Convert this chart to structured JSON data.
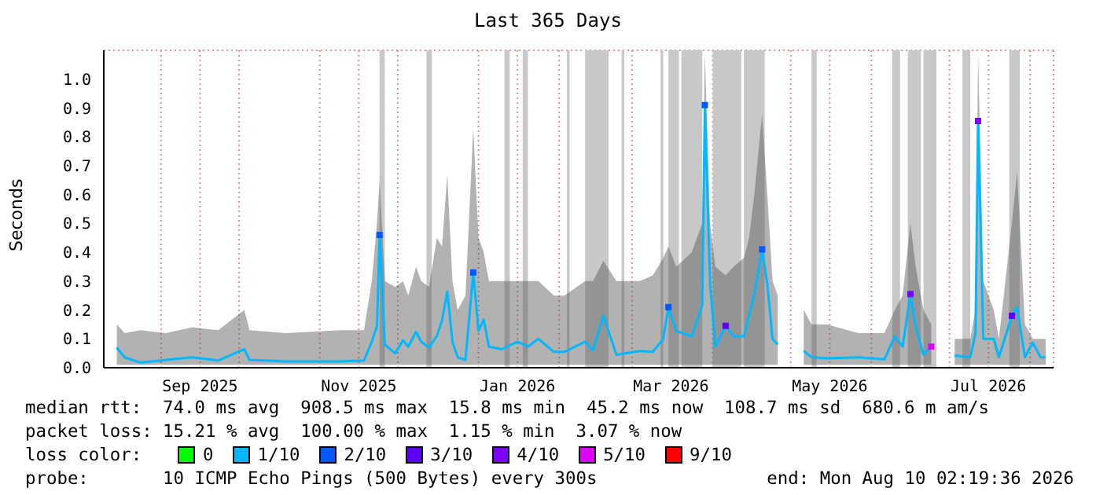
{
  "chart_data": {
    "type": "line",
    "title": "Last 365 Days",
    "ylabel": "Seconds",
    "xlim": [
      "2025-08-10",
      "2026-08-10"
    ],
    "ylim": [
      0,
      1.1
    ],
    "xticks": [
      {
        "value": "2025-09-01",
        "label": null
      },
      {
        "value": "2025-09-16",
        "label": "Sep 2025"
      },
      {
        "value": "2025-10-01",
        "label": null
      },
      {
        "value": "2025-11-01",
        "label": null
      },
      {
        "value": "2025-11-16",
        "label": "Nov 2025"
      },
      {
        "value": "2025-12-01",
        "label": null
      },
      {
        "value": "2026-01-01",
        "label": null
      },
      {
        "value": "2026-01-16",
        "label": "Jan 2026"
      },
      {
        "value": "2026-02-01",
        "label": null
      },
      {
        "value": "2026-03-01",
        "label": null
      },
      {
        "value": "2026-03-16",
        "label": "Mar 2026"
      },
      {
        "value": "2026-04-01",
        "label": null
      },
      {
        "value": "2026-05-01",
        "label": null
      },
      {
        "value": "2026-05-16",
        "label": "May 2026"
      },
      {
        "value": "2026-06-01",
        "label": null
      },
      {
        "value": "2026-07-01",
        "label": null
      },
      {
        "value": "2026-07-16",
        "label": "Jul 2026"
      },
      {
        "value": "2026-08-01",
        "label": null
      }
    ],
    "yticks": [
      {
        "value": 0,
        "label": "0.0"
      },
      0.1,
      0.2,
      0.3,
      0.4,
      0.5,
      0.6,
      0.7,
      0.8,
      0.9,
      {
        "value": 1,
        "label": "1.0"
      }
    ],
    "grid": true,
    "legend": "bottom",
    "legend_title": "loss color:",
    "bands": [
      {
        "axis": "x",
        "from": "2025-11-24",
        "to": "2025-11-26",
        "color": "#c8c8c8"
      },
      {
        "axis": "x",
        "from": "2025-12-12",
        "to": "2025-12-14",
        "color": "#c8c8c8"
      },
      {
        "axis": "x",
        "from": "2026-01-11",
        "to": "2026-01-13",
        "color": "#c8c8c8"
      },
      {
        "axis": "x",
        "from": "2026-01-18",
        "to": "2026-01-20",
        "color": "#c8c8c8"
      },
      {
        "axis": "x",
        "from": "2026-02-04",
        "to": "2026-02-05",
        "color": "#c8c8c8"
      },
      {
        "axis": "x",
        "from": "2026-02-11",
        "to": "2026-02-20",
        "color": "#c8c8c8"
      },
      {
        "axis": "x",
        "from": "2026-02-25",
        "to": "2026-02-26",
        "color": "#c8c8c8"
      },
      {
        "axis": "x",
        "from": "2026-03-12",
        "to": "2026-03-13",
        "color": "#c8c8c8"
      },
      {
        "axis": "x",
        "from": "2026-03-15",
        "to": "2026-03-19",
        "color": "#c8c8c8"
      },
      {
        "axis": "x",
        "from": "2026-03-20",
        "to": "2026-03-28",
        "color": "#c8c8c8"
      },
      {
        "axis": "x",
        "from": "2026-04-01",
        "to": "2026-04-12",
        "color": "#c8c8c8"
      },
      {
        "axis": "x",
        "from": "2026-04-13",
        "to": "2026-04-21",
        "color": "#c8c8c8"
      },
      {
        "axis": "x",
        "from": "2026-05-09",
        "to": "2026-05-11",
        "color": "#c8c8c8"
      },
      {
        "axis": "x",
        "from": "2026-06-09",
        "to": "2026-06-12",
        "color": "#c8c8c8"
      },
      {
        "axis": "x",
        "from": "2026-06-15",
        "to": "2026-06-20",
        "color": "#c8c8c8"
      },
      {
        "axis": "x",
        "from": "2026-06-21",
        "to": "2026-06-26",
        "color": "#c8c8c8"
      },
      {
        "axis": "x",
        "from": "2026-07-06",
        "to": "2026-07-09",
        "color": "#c8c8c8"
      },
      {
        "axis": "x",
        "from": "2026-07-24",
        "to": "2026-07-28",
        "color": "#c8c8c8"
      }
    ],
    "series": [
      {
        "name": "0",
        "type": "scatter",
        "color": "#00ff00"
      },
      {
        "name": "1/10",
        "color": "#00b8ff",
        "x": [
          "2025-08-15",
          "2025-08-18",
          "2025-08-24",
          "2025-09-03",
          "2025-09-13",
          "2025-09-23",
          "2025-10-03",
          "2025-10-05",
          "2025-10-19",
          "2025-11-09",
          "2025-11-18",
          "2025-11-21",
          "2025-11-23",
          "2025-11-24",
          "2025-11-26",
          "2025-11-30",
          "2025-12-03",
          "2025-12-05",
          "2025-12-08",
          "2025-12-10",
          "2025-12-13",
          "2025-12-16",
          "2025-12-18",
          "2025-12-20",
          "2025-12-22",
          "2025-12-24",
          "2025-12-27",
          "2025-12-30",
          "2026-01-01",
          "2026-01-03",
          "2026-01-05",
          "2026-01-10",
          "2026-01-16",
          "2026-01-20",
          "2026-01-24",
          "2026-01-30",
          "2026-02-03",
          "2026-02-11",
          "2026-02-14",
          "2026-02-18",
          "2026-02-23",
          "2026-03-04",
          "2026-03-09",
          "2026-03-13",
          "2026-03-15",
          "2026-03-18",
          "2026-03-24",
          "2026-03-28",
          "2026-03-29",
          "2026-03-31",
          "2026-04-02",
          "2026-04-06",
          "2026-04-09",
          "2026-04-13",
          "2026-04-15",
          "2026-04-17",
          "2026-04-20",
          "2026-04-22",
          "2026-04-24",
          "2026-04-26",
          "2026-04-30",
          "2026-05-06",
          "2026-05-09",
          "2026-05-15",
          "2026-05-27",
          "2026-06-06",
          "2026-06-10",
          "2026-06-13",
          "2026-06-16",
          "2026-06-18",
          "2026-06-21",
          "2026-06-24",
          "2026-06-28",
          "2026-07-03",
          "2026-07-09",
          "2026-07-11",
          "2026-07-12",
          "2026-07-14",
          "2026-07-18",
          "2026-07-20",
          "2026-07-25",
          "2026-07-27",
          "2026-07-30",
          "2026-08-02",
          "2026-08-05",
          "2026-08-07"
        ],
        "values": [
          0.07,
          0.036,
          0.018,
          0.027,
          0.036,
          0.025,
          0.064,
          0.027,
          0.022,
          0.022,
          0.025,
          0.09,
          0.145,
          0.46,
          0.08,
          0.05,
          0.095,
          0.073,
          0.124,
          0.09,
          0.07,
          0.11,
          0.164,
          0.264,
          0.09,
          0.036,
          0.027,
          0.33,
          0.127,
          0.167,
          0.073,
          0.064,
          0.09,
          0.073,
          0.1,
          0.055,
          0.055,
          0.09,
          0.06,
          0.18,
          0.045,
          0.058,
          0.055,
          0.1,
          0.21,
          0.127,
          0.109,
          0.218,
          0.91,
          0.29,
          0.073,
          0.145,
          0.109,
          0.109,
          0.18,
          0.255,
          0.41,
          0.29,
          0.1,
          0.08,
          null,
          0.058,
          0.036,
          0.033,
          0.036,
          0.029,
          0.109,
          0.073,
          0.255,
          0.145,
          0.045,
          0.073,
          null,
          0.042,
          0.036,
          0.118,
          0.855,
          0.1,
          0.1,
          0.036,
          0.18,
          0.21,
          0.036,
          0.087,
          0.036,
          0.036
        ],
        "lower": [
          0.01,
          0.01,
          0.01,
          0.01,
          0.01,
          0.01,
          0.01,
          0.01,
          0.01,
          0.01,
          0.01,
          0.01,
          0.01,
          0.01,
          0.01,
          0.01,
          0.01,
          0.01,
          0.01,
          0.01,
          0.01,
          0.01,
          0.01,
          0.01,
          0.01,
          0.01,
          0.01,
          0.01,
          0.01,
          0.01,
          0.01,
          0.01,
          0.01,
          0.01,
          0.01,
          0.01,
          0.01,
          0.01,
          0.01,
          0.01,
          0.01,
          0.01,
          0.01,
          0.01,
          0.01,
          0.01,
          0.01,
          0.01,
          0.01,
          0.01,
          0.01,
          0.01,
          0.01,
          0.01,
          0.01,
          0.01,
          0.01,
          0.01,
          0.01,
          0.01,
          null,
          0.01,
          0.01,
          0.01,
          0.01,
          0.01,
          0.01,
          0.01,
          0.01,
          0.01,
          0.01,
          0.01,
          null,
          0.01,
          0.01,
          0.01,
          0.01,
          0.01,
          0.01,
          0.01,
          0.01,
          0.01,
          0.01,
          0.01,
          0.01,
          0.01
        ],
        "upper": [
          0.15,
          0.12,
          0.13,
          0.12,
          0.14,
          0.13,
          0.2,
          0.13,
          0.12,
          0.13,
          0.13,
          0.3,
          0.5,
          0.65,
          0.3,
          0.28,
          0.3,
          0.25,
          0.35,
          0.3,
          0.28,
          0.45,
          0.42,
          0.67,
          0.3,
          0.2,
          0.25,
          0.83,
          0.45,
          0.4,
          0.3,
          0.3,
          0.3,
          0.3,
          0.3,
          0.25,
          0.25,
          0.3,
          0.3,
          0.37,
          0.3,
          0.3,
          0.32,
          0.38,
          0.42,
          0.35,
          0.4,
          0.5,
          1.09,
          0.5,
          0.35,
          0.32,
          0.35,
          0.38,
          0.45,
          0.6,
          0.88,
          0.6,
          0.3,
          0.25,
          null,
          0.2,
          0.15,
          0.15,
          0.12,
          0.12,
          0.2,
          0.25,
          0.5,
          0.35,
          0.2,
          0.15,
          null,
          0.1,
          0.1,
          0.2,
          1.09,
          0.3,
          0.2,
          0.1,
          0.5,
          0.68,
          0.15,
          0.1,
          0.1,
          0.1
        ]
      },
      {
        "name": "2/10",
        "type": "scatter",
        "color": "#0059ff",
        "x": [
          "2025-11-24",
          "2025-12-30",
          "2026-03-15",
          "2026-03-29",
          "2026-04-20"
        ],
        "values": [
          0.46,
          0.33,
          0.21,
          0.91,
          0.41
        ]
      },
      {
        "name": "3/10",
        "type": "scatter",
        "color": "#5e00ff",
        "x": [
          "2026-04-06",
          "2026-07-25"
        ],
        "values": [
          0.145,
          0.18
        ]
      },
      {
        "name": "4/10",
        "type": "scatter",
        "color": "#7e00ff",
        "x": [
          "2026-06-16",
          "2026-07-12"
        ],
        "values": [
          0.255,
          0.855
        ]
      },
      {
        "name": "5/10",
        "type": "scatter",
        "color": "#dd00ff",
        "x": [
          "2026-06-24"
        ],
        "values": [
          0.073
        ]
      },
      {
        "name": "9/10",
        "type": "scatter",
        "color": "#ff0000"
      }
    ],
    "annotations": [
      "median rtt:  74.0 ms avg  908.5 ms max  15.8 ms min  45.2 ms now  108.7 ms sd  680.6 m am/s",
      "packet loss: 15.21 % avg  100.00 % max  1.15 % min  3.07 % now",
      "probe:       10 ICMP Echo Pings (500 Bytes) every 300s",
      "end: Mon Aug 10 02:19:36 2026"
    ]
  }
}
